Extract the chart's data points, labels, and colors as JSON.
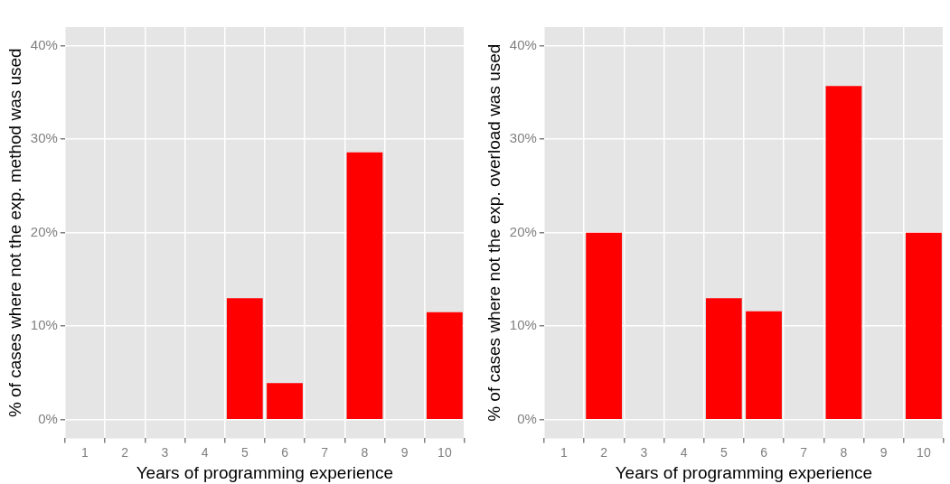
{
  "chart_data": [
    {
      "type": "bar",
      "xlabel": "Years of programming experience",
      "ylabel": "% of cases where not the exp. method was used",
      "categories": [
        "1",
        "2",
        "3",
        "4",
        "5",
        "6",
        "7",
        "8",
        "9",
        "10"
      ],
      "values": [
        0,
        0,
        0,
        0,
        13,
        3.9,
        0,
        28.6,
        0,
        11.5
      ],
      "color": "#ff0000",
      "ylim": [
        -2,
        42
      ],
      "yticks": [
        {
          "value": 0,
          "label": "0%"
        },
        {
          "value": 10,
          "label": "10%"
        },
        {
          "value": 20,
          "label": "20%"
        },
        {
          "value": 30,
          "label": "30%"
        },
        {
          "value": 40,
          "label": "40%"
        }
      ],
      "grid": true
    },
    {
      "type": "bar",
      "xlabel": "Years of programming experience",
      "ylabel": "% of cases where not the exp. overload was used",
      "categories": [
        "1",
        "2",
        "3",
        "4",
        "5",
        "6",
        "7",
        "8",
        "9",
        "10"
      ],
      "values": [
        0,
        20,
        0,
        0,
        13,
        11.6,
        0,
        35.7,
        0,
        20
      ],
      "color": "#ff0000",
      "ylim": [
        -2,
        42
      ],
      "yticks": [
        {
          "value": 0,
          "label": "0%"
        },
        {
          "value": 10,
          "label": "10%"
        },
        {
          "value": 20,
          "label": "20%"
        },
        {
          "value": 30,
          "label": "30%"
        },
        {
          "value": 40,
          "label": "40%"
        }
      ],
      "grid": true
    }
  ]
}
